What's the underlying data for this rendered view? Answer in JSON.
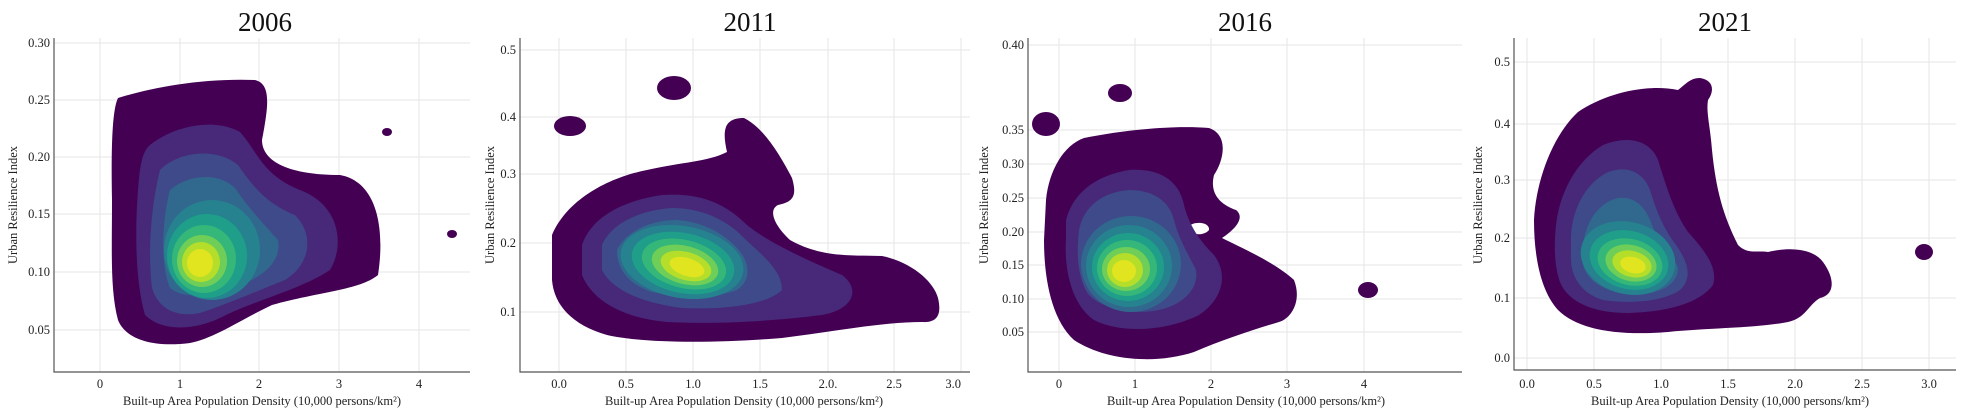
{
  "chart_data": [
    {
      "type": "heatmap",
      "title": "2006",
      "xlabel": "Built-up Area Population Density (10,000 persons/km²)",
      "ylabel": "Urban Resilience Index",
      "xticks": [
        "0",
        "1",
        "2",
        "3",
        "4"
      ],
      "yticks": [
        "0.05",
        "0.10",
        "0.15",
        "0.20",
        "0.25",
        "0.30"
      ],
      "xlim": [
        -0.6,
        4.6
      ],
      "ylim": [
        0.02,
        0.305
      ],
      "grid": true,
      "density_peak": {
        "x": 1.2,
        "y": 0.11
      }
    },
    {
      "type": "heatmap",
      "title": "2011",
      "xlabel": "Built-up Area Population Density (10,000 persons/km²)",
      "ylabel": "Urban Resilience Index",
      "xticks": [
        "0.0",
        "0.5",
        "1.0",
        "1.5",
        "2.0.",
        "2.5",
        "3.0"
      ],
      "yticks": [
        "0.1",
        "0.2",
        "0.3",
        "0.4",
        "0.5"
      ],
      "xlim": [
        -0.3,
        3.2
      ],
      "ylim": [
        0.0,
        0.52
      ],
      "grid": true,
      "density_peak": {
        "x": 0.95,
        "y": 0.16
      }
    },
    {
      "type": "heatmap",
      "title": "2016",
      "xlabel": "Built-up Area Population Density (10,000 persons/km²)",
      "ylabel": "Urban Resilience Index",
      "xticks": [
        "0",
        "1",
        "2",
        "3",
        "4"
      ],
      "yticks": [
        "0.05",
        "0.10",
        "0.15",
        "0.20",
        "0.25",
        "0.30",
        "0.35",
        "0.40"
      ],
      "xlim": [
        -0.4,
        4.3
      ],
      "ylim": [
        0.01,
        0.41
      ],
      "grid": true,
      "density_peak": {
        "x": 0.95,
        "y": 0.135
      }
    },
    {
      "type": "heatmap",
      "title": "2021",
      "xlabel": "Built-up Area Population Density (10,000 persons/km²)",
      "ylabel": "Urban Resilience Index",
      "xticks": [
        "0.0",
        "0.5",
        "1.0",
        "1.5",
        "2.0",
        "2.5",
        "3.0"
      ],
      "yticks": [
        "0.0",
        "0.1",
        "0.2",
        "0.3",
        "0.4",
        "0.5"
      ],
      "xlim": [
        -0.1,
        3.1
      ],
      "ylim": [
        -0.02,
        0.55
      ],
      "grid": true,
      "density_peak": {
        "x": 0.9,
        "y": 0.16
      }
    }
  ],
  "colors": [
    "#440154",
    "#482878",
    "#3e4a89",
    "#31688e",
    "#26828e",
    "#1f9e89",
    "#35b779",
    "#6ece58",
    "#b5de2b",
    "#e0e51f"
  ]
}
